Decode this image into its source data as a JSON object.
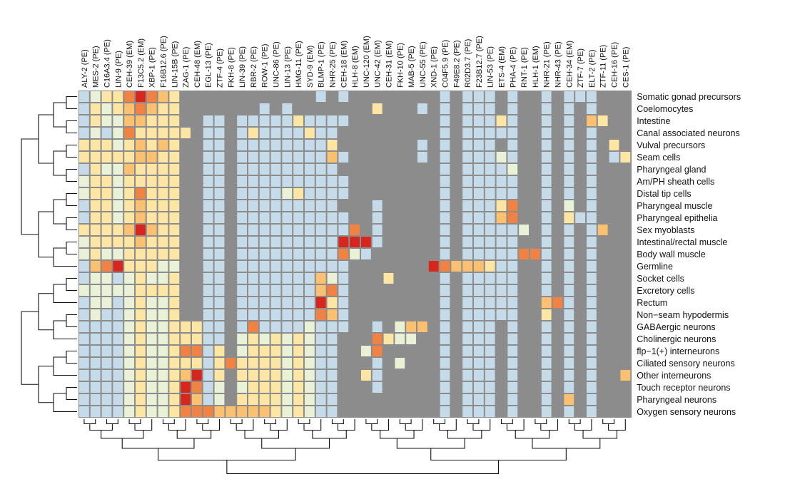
{
  "chart_data": {
    "type": "heatmap",
    "title": "",
    "xlabel": "",
    "ylabel": "",
    "legend": "none",
    "colors": {
      "background": "#8c8c8c",
      "levels": [
        "#c5dbea",
        "#e9f2d6",
        "#fde6a3",
        "#fbc170",
        "#f08244",
        "#d7261e"
      ]
    },
    "columns": [
      "ALY-2 (PE)",
      "MES-2 (PE)",
      "C16A3.4 (PE)",
      "LIN-9 (PE)",
      "CEH-39 (EM)",
      "F13C5.2 (EM)",
      "XBP-1 (PE)",
      "F16B12.6 (PE)",
      "LIN-15B (PE)",
      "ZAG-1 (PE)",
      "CEH-48 (EM)",
      "EGL-13 (PE)",
      "ZTF-4 (PE)",
      "FKH-8 (PE)",
      "LIN-39 (PE)",
      "RBR-2 (PE)",
      "ROW-1 (PE)",
      "UNC-86 (PE)",
      "LIN-13 (PE)",
      "HMG-11 (PE)",
      "SYD-9 (EM)",
      "BLMP-1 (PE)",
      "NHR-25 (PE)",
      "CEH-18 (EM)",
      "HLH-8 (EM)",
      "UNC-120 (EM)",
      "UNC-42 (EM)",
      "CEH-31 (EM)",
      "FKH-10 (PE)",
      "MAB-5 (PE)",
      "UNC-55 (PE)",
      "XND-1 (PE)",
      "C04F5.9 (PE)",
      "F49E8.2 (PE)",
      "R02D3.7 (PE)",
      "F23B12.7 (PE)",
      "LIN-53 (PE)",
      "ETS-4 (EM)",
      "PHA-4 (PE)",
      "RNT-1 (PE)",
      "HLH-1 (EM)",
      "NHR-21 (PE)",
      "NHR-43 (PE)",
      "CEH-34 (EM)",
      "ZTF-7 (PE)",
      "ELT-2 (PE)",
      "ZTF-11 (PE)",
      "CEH-16 (PE)",
      "CES-1 (PE)"
    ],
    "rows": [
      "Somatic gonad precursors",
      "Coelomocytes",
      "Intestine",
      "Canal associated neurons",
      "Vulval precursors",
      "Seam cells",
      "Pharyngeal gland",
      "Am/PH sheath cells",
      "Distal tip cells",
      "Pharyngeal muscle",
      "Pharyngeal epithelia",
      "Sex myoblasts",
      "Intestinal/rectal muscle",
      "Body wall muscle",
      "Germline",
      "Socket cells",
      "Excretory cells",
      "Rectum",
      "Non−seam hypodermis",
      "GABAergic neurons",
      "Cholinergic neurons",
      "flp−1(+) interneurons",
      "Ciliated sensory neurons",
      "Other interneurons",
      "Touch receptor neurons",
      "Pharyngeal neurons",
      "Oxygen sensory neurons"
    ],
    "level_scale": "0 = not significant (grey); 1 (low) to 6 (high) enrichment",
    "values": [
      [
        1,
        2,
        3,
        3,
        5,
        6,
        5,
        4,
        3,
        0,
        0,
        0,
        0,
        0,
        0,
        0,
        0,
        0,
        0,
        0,
        0,
        1,
        0,
        1,
        0,
        0,
        0,
        0,
        0,
        0,
        0,
        0,
        1,
        0,
        1,
        1,
        1,
        0,
        1,
        0,
        0,
        1,
        0,
        1,
        1,
        1,
        0,
        0,
        0
      ],
      [
        1,
        3,
        2,
        3,
        4,
        5,
        4,
        3,
        3,
        0,
        0,
        0,
        0,
        0,
        0,
        0,
        1,
        0,
        1,
        0,
        0,
        0,
        0,
        0,
        0,
        0,
        3,
        0,
        0,
        0,
        1,
        0,
        1,
        0,
        1,
        1,
        1,
        0,
        1,
        0,
        0,
        1,
        0,
        1,
        0,
        1,
        0,
        0,
        0
      ],
      [
        1,
        3,
        2,
        2,
        4,
        4,
        3,
        3,
        3,
        0,
        0,
        1,
        1,
        0,
        1,
        1,
        1,
        1,
        1,
        3,
        1,
        1,
        1,
        1,
        0,
        0,
        0,
        0,
        0,
        0,
        0,
        0,
        1,
        0,
        1,
        1,
        1,
        3,
        1,
        0,
        0,
        1,
        0,
        1,
        0,
        4,
        3,
        0,
        0
      ],
      [
        1,
        2,
        1,
        2,
        5,
        3,
        3,
        3,
        3,
        3,
        0,
        1,
        1,
        0,
        1,
        3,
        1,
        1,
        1,
        1,
        3,
        1,
        1,
        0,
        0,
        0,
        0,
        0,
        0,
        0,
        0,
        0,
        1,
        0,
        1,
        1,
        1,
        1,
        1,
        0,
        0,
        1,
        0,
        1,
        0,
        1,
        0,
        0,
        0
      ],
      [
        3,
        3,
        3,
        2,
        3,
        4,
        3,
        4,
        3,
        0,
        0,
        1,
        1,
        0,
        1,
        1,
        1,
        1,
        1,
        1,
        1,
        1,
        3,
        0,
        0,
        0,
        0,
        0,
        0,
        0,
        1,
        0,
        1,
        0,
        1,
        1,
        1,
        0,
        1,
        0,
        0,
        1,
        0,
        1,
        0,
        1,
        0,
        3,
        0
      ],
      [
        3,
        3,
        3,
        3,
        3,
        4,
        4,
        3,
        3,
        0,
        0,
        1,
        1,
        0,
        1,
        1,
        1,
        1,
        1,
        1,
        1,
        1,
        4,
        1,
        0,
        0,
        0,
        0,
        0,
        0,
        1,
        0,
        1,
        0,
        1,
        1,
        1,
        2,
        1,
        0,
        0,
        1,
        0,
        1,
        0,
        1,
        0,
        1,
        3
      ],
      [
        1,
        3,
        2,
        2,
        4,
        3,
        3,
        3,
        3,
        0,
        0,
        1,
        1,
        0,
        1,
        1,
        1,
        1,
        1,
        1,
        1,
        1,
        1,
        0,
        0,
        0,
        0,
        0,
        0,
        0,
        0,
        0,
        1,
        0,
        1,
        1,
        1,
        1,
        2,
        0,
        0,
        1,
        0,
        1,
        0,
        1,
        0,
        0,
        0
      ],
      [
        2,
        3,
        3,
        2,
        3,
        3,
        3,
        3,
        3,
        0,
        0,
        1,
        1,
        0,
        1,
        1,
        1,
        1,
        1,
        1,
        1,
        1,
        1,
        1,
        0,
        0,
        0,
        0,
        0,
        0,
        0,
        0,
        1,
        0,
        1,
        1,
        1,
        1,
        1,
        0,
        0,
        1,
        0,
        1,
        0,
        1,
        0,
        0,
        0
      ],
      [
        2,
        3,
        3,
        2,
        3,
        5,
        3,
        3,
        3,
        0,
        0,
        1,
        1,
        0,
        1,
        1,
        1,
        1,
        2,
        3,
        1,
        1,
        1,
        1,
        0,
        0,
        0,
        0,
        0,
        0,
        0,
        0,
        1,
        0,
        1,
        1,
        1,
        1,
        1,
        0,
        0,
        1,
        0,
        1,
        0,
        1,
        0,
        0,
        0
      ],
      [
        1,
        3,
        3,
        2,
        3,
        4,
        3,
        3,
        3,
        0,
        0,
        1,
        1,
        0,
        1,
        1,
        1,
        1,
        1,
        1,
        1,
        1,
        1,
        0,
        0,
        0,
        1,
        0,
        0,
        0,
        0,
        0,
        1,
        0,
        1,
        1,
        1,
        3,
        5,
        0,
        0,
        1,
        0,
        2,
        0,
        1,
        0,
        0,
        0
      ],
      [
        1,
        3,
        3,
        2,
        3,
        4,
        3,
        3,
        3,
        0,
        0,
        1,
        1,
        0,
        1,
        1,
        1,
        1,
        1,
        1,
        1,
        1,
        1,
        1,
        0,
        0,
        1,
        0,
        0,
        0,
        0,
        0,
        1,
        0,
        1,
        1,
        1,
        4,
        5,
        0,
        0,
        1,
        0,
        3,
        1,
        1,
        0,
        0,
        0
      ],
      [
        3,
        3,
        3,
        3,
        4,
        6,
        4,
        3,
        3,
        0,
        0,
        1,
        1,
        0,
        1,
        1,
        1,
        1,
        1,
        1,
        1,
        1,
        1,
        1,
        5,
        0,
        1,
        0,
        0,
        0,
        0,
        0,
        1,
        0,
        1,
        1,
        1,
        1,
        1,
        2,
        0,
        1,
        0,
        1,
        0,
        1,
        4,
        0,
        0
      ],
      [
        2,
        3,
        3,
        3,
        3,
        4,
        3,
        3,
        3,
        0,
        0,
        1,
        1,
        0,
        1,
        1,
        1,
        1,
        1,
        1,
        1,
        1,
        1,
        6,
        6,
        6,
        1,
        0,
        0,
        0,
        0,
        0,
        1,
        0,
        1,
        1,
        1,
        1,
        1,
        0,
        0,
        1,
        0,
        1,
        0,
        1,
        0,
        0,
        0
      ],
      [
        2,
        3,
        2,
        2,
        3,
        3,
        3,
        3,
        3,
        0,
        0,
        1,
        1,
        0,
        1,
        1,
        1,
        1,
        1,
        1,
        1,
        1,
        1,
        5,
        2,
        1,
        0,
        0,
        0,
        0,
        0,
        0,
        1,
        0,
        1,
        1,
        1,
        1,
        1,
        5,
        5,
        1,
        0,
        1,
        0,
        1,
        0,
        0,
        0
      ],
      [
        1,
        4,
        5,
        6,
        3,
        3,
        3,
        2,
        2,
        0,
        0,
        1,
        1,
        0,
        1,
        1,
        1,
        1,
        1,
        1,
        1,
        1,
        1,
        1,
        0,
        0,
        0,
        0,
        0,
        0,
        0,
        6,
        5,
        4,
        4,
        4,
        3,
        1,
        1,
        0,
        0,
        1,
        0,
        1,
        0,
        1,
        0,
        0,
        0
      ],
      [
        1,
        2,
        2,
        1,
        2,
        3,
        2,
        2,
        3,
        0,
        0,
        1,
        1,
        0,
        1,
        1,
        1,
        1,
        1,
        1,
        1,
        4,
        2,
        1,
        0,
        0,
        0,
        3,
        0,
        0,
        0,
        0,
        1,
        0,
        1,
        1,
        1,
        1,
        1,
        0,
        0,
        1,
        0,
        1,
        0,
        1,
        0,
        0,
        0
      ],
      [
        2,
        2,
        2,
        2,
        2,
        3,
        3,
        3,
        3,
        0,
        0,
        1,
        1,
        0,
        1,
        1,
        1,
        1,
        1,
        1,
        1,
        4,
        5,
        1,
        0,
        0,
        0,
        0,
        0,
        0,
        0,
        0,
        1,
        0,
        1,
        1,
        1,
        1,
        1,
        0,
        0,
        1,
        0,
        1,
        0,
        1,
        0,
        0,
        0
      ],
      [
        1,
        2,
        2,
        1,
        2,
        3,
        2,
        2,
        3,
        0,
        0,
        1,
        1,
        0,
        1,
        1,
        1,
        1,
        1,
        1,
        1,
        6,
        3,
        1,
        0,
        0,
        0,
        0,
        0,
        0,
        0,
        0,
        1,
        0,
        1,
        1,
        1,
        1,
        1,
        0,
        0,
        4,
        5,
        1,
        0,
        1,
        0,
        0,
        0
      ],
      [
        1,
        2,
        1,
        1,
        2,
        3,
        2,
        2,
        3,
        0,
        0,
        1,
        1,
        0,
        1,
        1,
        1,
        1,
        1,
        1,
        1,
        5,
        4,
        1,
        0,
        0,
        0,
        0,
        0,
        0,
        0,
        0,
        1,
        0,
        1,
        1,
        1,
        1,
        1,
        0,
        0,
        3,
        0,
        1,
        0,
        1,
        0,
        0,
        0
      ],
      [
        1,
        1,
        1,
        1,
        2,
        3,
        2,
        2,
        3,
        3,
        3,
        1,
        1,
        0,
        1,
        5,
        1,
        1,
        1,
        1,
        2,
        1,
        1,
        1,
        0,
        0,
        1,
        0,
        2,
        4,
        4,
        0,
        1,
        0,
        1,
        1,
        1,
        0,
        1,
        0,
        0,
        1,
        0,
        1,
        0,
        1,
        0,
        0,
        0
      ],
      [
        1,
        1,
        1,
        1,
        2,
        3,
        2,
        2,
        3,
        3,
        3,
        1,
        1,
        0,
        2,
        3,
        2,
        3,
        2,
        3,
        2,
        1,
        1,
        0,
        0,
        0,
        5,
        3,
        2,
        2,
        0,
        0,
        1,
        0,
        1,
        1,
        1,
        0,
        1,
        0,
        0,
        1,
        0,
        1,
        0,
        1,
        0,
        0,
        0
      ],
      [
        1,
        1,
        1,
        1,
        2,
        3,
        2,
        2,
        3,
        5,
        5,
        1,
        3,
        0,
        2,
        3,
        3,
        3,
        2,
        3,
        2,
        1,
        1,
        0,
        0,
        2,
        5,
        0,
        0,
        0,
        0,
        0,
        1,
        0,
        1,
        1,
        1,
        0,
        1,
        0,
        0,
        1,
        0,
        1,
        0,
        1,
        0,
        0,
        0
      ],
      [
        1,
        1,
        1,
        1,
        2,
        3,
        2,
        2,
        3,
        3,
        3,
        1,
        3,
        5,
        3,
        3,
        3,
        3,
        2,
        3,
        2,
        1,
        1,
        0,
        0,
        0,
        1,
        0,
        2,
        0,
        0,
        0,
        1,
        0,
        1,
        1,
        1,
        0,
        1,
        0,
        0,
        1,
        0,
        1,
        0,
        1,
        0,
        0,
        0
      ],
      [
        1,
        1,
        1,
        1,
        2,
        3,
        2,
        2,
        3,
        4,
        6,
        1,
        3,
        0,
        3,
        3,
        3,
        3,
        2,
        3,
        2,
        1,
        1,
        0,
        0,
        3,
        1,
        0,
        0,
        0,
        0,
        0,
        1,
        0,
        1,
        1,
        1,
        0,
        1,
        0,
        0,
        1,
        0,
        1,
        0,
        1,
        0,
        0,
        4
      ],
      [
        1,
        1,
        1,
        1,
        2,
        3,
        2,
        2,
        3,
        6,
        5,
        1,
        2,
        0,
        2,
        3,
        3,
        3,
        2,
        3,
        2,
        1,
        1,
        0,
        0,
        0,
        1,
        0,
        0,
        0,
        0,
        0,
        1,
        0,
        1,
        1,
        1,
        0,
        1,
        0,
        0,
        1,
        0,
        1,
        0,
        1,
        0,
        0,
        0
      ],
      [
        1,
        1,
        1,
        1,
        2,
        3,
        2,
        2,
        3,
        6,
        4,
        1,
        2,
        0,
        3,
        3,
        3,
        3,
        2,
        3,
        2,
        1,
        1,
        0,
        0,
        0,
        0,
        0,
        0,
        0,
        0,
        0,
        1,
        0,
        1,
        1,
        1,
        0,
        1,
        0,
        0,
        1,
        0,
        4,
        0,
        1,
        0,
        0,
        0
      ],
      [
        1,
        1,
        1,
        1,
        2,
        3,
        2,
        2,
        3,
        5,
        5,
        5,
        4,
        4,
        4,
        4,
        4,
        3,
        2,
        3,
        2,
        1,
        1,
        0,
        0,
        0,
        0,
        0,
        0,
        0,
        0,
        0,
        1,
        0,
        1,
        1,
        1,
        0,
        1,
        0,
        0,
        1,
        0,
        1,
        0,
        1,
        0,
        0,
        0
      ]
    ]
  }
}
